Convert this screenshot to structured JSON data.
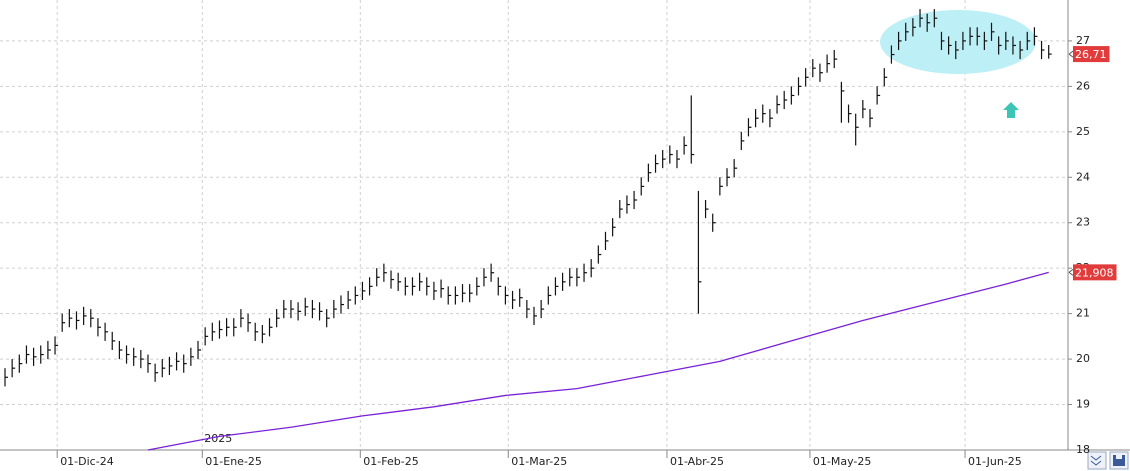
{
  "chart_data": {
    "type": "ohlc",
    "xlim": [
      -0.7,
      148.7
    ],
    "ylim": [
      18,
      27.9
    ],
    "yticks": [
      18,
      19,
      20,
      21,
      22,
      23,
      24,
      25,
      26,
      27
    ],
    "xticks": [
      {
        "value": 7.3,
        "label": "01-Dic-24"
      },
      {
        "value": 27.6,
        "label": "01-Ene-25"
      },
      {
        "value": 49.7,
        "label": "01-Feb-25"
      },
      {
        "value": 70.4,
        "label": "01-Mar-25"
      },
      {
        "value": 92.6,
        "label": "01-Abr-25"
      },
      {
        "value": 112.6,
        "label": "01-May-25"
      },
      {
        "value": 134.3,
        "label": "01-Jun-25"
      }
    ],
    "grid": true,
    "annotations": [
      {
        "text": "2025",
        "x": 27.6,
        "y": 18.2
      }
    ],
    "price_markers": [
      {
        "value": 26.71,
        "label": "26,71"
      },
      {
        "value": 21.908,
        "label": "21,908"
      }
    ],
    "series": [
      {
        "type": "ohlc",
        "color": "#111111",
        "x": [
          0,
          1,
          2,
          3,
          4,
          5,
          6,
          7,
          8,
          9,
          10,
          11,
          12,
          13,
          14,
          15,
          16,
          17,
          18,
          19,
          20,
          21,
          22,
          23,
          24,
          25,
          26,
          27,
          28,
          29,
          30,
          31,
          32,
          33,
          34,
          35,
          36,
          37,
          38,
          39,
          40,
          41,
          42,
          43,
          44,
          45,
          46,
          47,
          48,
          49,
          50,
          51,
          52,
          53,
          54,
          55,
          56,
          57,
          58,
          59,
          60,
          61,
          62,
          63,
          64,
          65,
          66,
          67,
          68,
          69,
          70,
          71,
          72,
          73,
          74,
          75,
          76,
          77,
          78,
          79,
          80,
          81,
          82,
          83,
          84,
          85,
          86,
          87,
          88,
          89,
          90,
          91,
          92,
          93,
          94,
          95,
          96,
          97,
          98,
          99,
          100,
          101,
          102,
          103,
          104,
          105,
          106,
          107,
          108,
          109,
          110,
          111,
          112,
          113,
          114,
          115,
          116,
          117,
          118,
          119,
          120,
          121,
          122,
          123,
          124,
          125,
          126,
          127,
          128,
          129,
          130,
          131,
          132,
          133,
          134,
          135,
          136,
          137,
          138,
          139,
          140,
          141,
          142,
          143,
          144,
          145,
          146
        ],
        "high": [
          19.8,
          20.0,
          20.1,
          20.3,
          20.25,
          20.3,
          20.4,
          20.5,
          21.0,
          21.1,
          21.05,
          21.15,
          21.1,
          20.9,
          20.8,
          20.6,
          20.4,
          20.3,
          20.25,
          20.2,
          20.1,
          19.9,
          20.0,
          20.05,
          20.15,
          20.1,
          20.25,
          20.4,
          20.7,
          20.8,
          20.85,
          20.9,
          20.9,
          21.1,
          21.0,
          20.8,
          20.75,
          20.9,
          21.1,
          21.3,
          21.3,
          21.25,
          21.35,
          21.3,
          21.25,
          21.1,
          21.3,
          21.4,
          21.5,
          21.6,
          21.7,
          21.8,
          22.0,
          22.1,
          21.95,
          21.9,
          21.8,
          21.8,
          21.9,
          21.8,
          21.7,
          21.75,
          21.6,
          21.6,
          21.65,
          21.65,
          21.8,
          22.0,
          22.1,
          21.8,
          21.6,
          21.5,
          21.55,
          21.3,
          21.15,
          21.3,
          21.6,
          21.8,
          21.9,
          22.0,
          22.0,
          22.1,
          22.2,
          22.5,
          22.8,
          23.1,
          23.5,
          23.6,
          23.7,
          24.0,
          24.3,
          24.5,
          24.6,
          24.7,
          24.6,
          24.9,
          25.8,
          23.7,
          23.5,
          23.2,
          24.0,
          24.2,
          24.4,
          25.0,
          25.3,
          25.5,
          25.6,
          25.5,
          25.8,
          25.9,
          26.0,
          26.2,
          26.4,
          26.6,
          26.5,
          26.7,
          26.8,
          26.1,
          25.6,
          25.4,
          25.7,
          25.5,
          26.0,
          26.4,
          26.9,
          27.2,
          27.4,
          27.5,
          27.7,
          27.6,
          27.7,
          27.2,
          27.1,
          27.0,
          27.2,
          27.3,
          27.3,
          27.2,
          27.4,
          27.1,
          27.2,
          27.1,
          27.0,
          27.2,
          27.3,
          27.0,
          26.91
        ],
        "low": [
          19.4,
          19.6,
          19.7,
          19.9,
          19.85,
          19.9,
          20.0,
          20.1,
          20.6,
          20.7,
          20.65,
          20.75,
          20.7,
          20.5,
          20.4,
          20.2,
          20.0,
          19.9,
          19.85,
          19.8,
          19.7,
          19.5,
          19.6,
          19.65,
          19.75,
          19.7,
          19.85,
          20.0,
          20.3,
          20.4,
          20.45,
          20.5,
          20.5,
          20.7,
          20.6,
          20.4,
          20.35,
          20.5,
          20.7,
          20.9,
          20.9,
          20.85,
          20.95,
          20.9,
          20.85,
          20.7,
          20.9,
          21.0,
          21.1,
          21.2,
          21.3,
          21.4,
          21.6,
          21.7,
          21.55,
          21.5,
          21.4,
          21.4,
          21.5,
          21.4,
          21.3,
          21.35,
          21.2,
          21.2,
          21.25,
          21.25,
          21.4,
          21.6,
          21.7,
          21.4,
          21.2,
          21.1,
          21.15,
          20.9,
          20.75,
          20.9,
          21.2,
          21.4,
          21.5,
          21.6,
          21.6,
          21.7,
          21.8,
          22.1,
          22.4,
          22.7,
          23.1,
          23.2,
          23.3,
          23.6,
          23.9,
          24.1,
          24.2,
          24.3,
          24.2,
          24.5,
          24.3,
          21.0,
          23.1,
          22.8,
          23.6,
          23.8,
          24.0,
          24.6,
          24.9,
          25.1,
          25.2,
          25.1,
          25.4,
          25.5,
          25.6,
          25.8,
          26.0,
          26.2,
          26.1,
          26.3,
          26.4,
          25.2,
          25.2,
          24.7,
          25.3,
          25.1,
          25.6,
          26.0,
          26.5,
          26.8,
          27.0,
          27.1,
          27.3,
          27.2,
          27.3,
          26.8,
          26.7,
          26.6,
          26.8,
          26.9,
          26.9,
          26.8,
          27.0,
          26.7,
          26.8,
          26.7,
          26.6,
          26.8,
          26.9,
          26.6,
          26.61
        ],
        "close": [
          19.6,
          19.8,
          19.9,
          20.1,
          20.05,
          20.1,
          20.2,
          20.3,
          20.8,
          20.9,
          20.85,
          20.95,
          20.9,
          20.7,
          20.6,
          20.4,
          20.2,
          20.1,
          20.05,
          20.0,
          19.9,
          19.7,
          19.8,
          19.85,
          19.95,
          19.9,
          20.05,
          20.2,
          20.5,
          20.6,
          20.65,
          20.7,
          20.7,
          20.9,
          20.8,
          20.6,
          20.55,
          20.7,
          20.9,
          21.1,
          21.1,
          21.05,
          21.15,
          21.1,
          21.05,
          20.9,
          21.1,
          21.2,
          21.3,
          21.4,
          21.5,
          21.6,
          21.8,
          21.9,
          21.75,
          21.7,
          21.6,
          21.6,
          21.7,
          21.6,
          21.5,
          21.55,
          21.4,
          21.4,
          21.45,
          21.45,
          21.6,
          21.8,
          21.9,
          21.6,
          21.4,
          21.3,
          21.35,
          21.1,
          20.95,
          21.1,
          21.4,
          21.6,
          21.7,
          21.8,
          21.8,
          21.9,
          22.0,
          22.3,
          22.6,
          22.9,
          23.3,
          23.4,
          23.5,
          23.8,
          24.1,
          24.3,
          24.4,
          24.5,
          24.4,
          24.7,
          24.5,
          21.7,
          23.3,
          23.0,
          23.8,
          24.0,
          24.2,
          24.8,
          25.1,
          25.3,
          25.4,
          25.3,
          25.6,
          25.7,
          25.8,
          26.0,
          26.2,
          26.4,
          26.3,
          26.5,
          26.6,
          25.9,
          25.4,
          25.1,
          25.5,
          25.3,
          25.8,
          26.2,
          26.7,
          27.0,
          27.2,
          27.3,
          27.5,
          27.4,
          27.5,
          27.0,
          26.9,
          26.8,
          27.0,
          27.1,
          27.1,
          27.0,
          27.2,
          26.9,
          27.0,
          26.9,
          26.8,
          27.0,
          27.1,
          26.8,
          26.71
        ]
      },
      {
        "type": "line",
        "color": "#7a22d8",
        "x": [
          20,
          30,
          40,
          50,
          60,
          70,
          80,
          90,
          100,
          110,
          120,
          130,
          140,
          146
        ],
        "values": [
          18.0,
          18.3,
          18.5,
          18.75,
          18.95,
          19.2,
          19.35,
          19.65,
          19.95,
          20.4,
          20.85,
          21.25,
          21.65,
          21.908
        ]
      }
    ]
  }
}
